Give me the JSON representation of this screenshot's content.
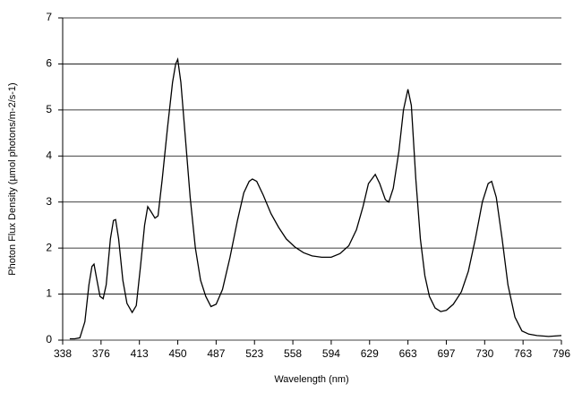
{
  "chart_data": {
    "type": "line",
    "x_label": "Wavelength (nm)",
    "y_label": "Photon Flux Density (µmol photons/m-2/s-1)",
    "x": [
      345,
      350,
      355,
      360,
      364,
      367,
      369,
      372,
      375,
      378,
      381,
      385,
      388,
      390,
      393,
      397,
      401,
      406,
      410,
      414,
      418,
      421,
      424,
      428,
      431,
      435,
      440,
      445,
      448,
      450,
      453,
      457,
      462,
      467,
      472,
      477,
      482,
      487,
      493,
      500,
      507,
      513,
      518,
      521,
      525,
      531,
      538,
      545,
      552,
      560,
      568,
      576,
      585,
      594,
      602,
      610,
      617,
      623,
      628,
      634,
      638,
      643,
      646,
      650,
      655,
      659,
      663,
      666,
      670,
      674,
      678,
      682,
      687,
      692,
      697,
      703,
      710,
      716,
      722,
      728,
      733,
      736,
      740,
      745,
      750,
      756,
      762,
      768,
      775,
      785,
      796
    ],
    "series": [
      {
        "name": "Photon Flux Density",
        "color": "#000000",
        "values": [
          0.03,
          0.03,
          0.05,
          0.4,
          1.2,
          1.6,
          1.65,
          1.3,
          0.95,
          0.9,
          1.2,
          2.2,
          2.6,
          2.62,
          2.2,
          1.3,
          0.8,
          0.6,
          0.75,
          1.6,
          2.5,
          2.9,
          2.8,
          2.65,
          2.7,
          3.5,
          4.6,
          5.6,
          6.0,
          6.1,
          5.6,
          4.5,
          3.1,
          2.0,
          1.3,
          0.95,
          0.73,
          0.78,
          1.1,
          1.8,
          2.6,
          3.2,
          3.45,
          3.5,
          3.45,
          3.15,
          2.75,
          2.45,
          2.2,
          2.02,
          1.9,
          1.83,
          1.8,
          1.8,
          1.88,
          2.05,
          2.4,
          2.9,
          3.4,
          3.6,
          3.4,
          3.05,
          3.0,
          3.3,
          4.1,
          5.0,
          5.45,
          5.1,
          3.5,
          2.2,
          1.4,
          0.95,
          0.7,
          0.62,
          0.65,
          0.78,
          1.05,
          1.5,
          2.2,
          3.0,
          3.4,
          3.45,
          3.1,
          2.2,
          1.2,
          0.5,
          0.2,
          0.13,
          0.1,
          0.08,
          0.1
        ]
      }
    ],
    "xlim": [
      338,
      796
    ],
    "xticks": [
      338,
      376,
      413,
      450,
      487,
      523,
      558,
      594,
      629,
      663,
      697,
      730,
      763,
      796
    ],
    "ylim": [
      0,
      7
    ],
    "yticks": [
      0,
      1,
      2,
      3,
      4,
      5,
      6,
      7
    ],
    "grid": true
  }
}
